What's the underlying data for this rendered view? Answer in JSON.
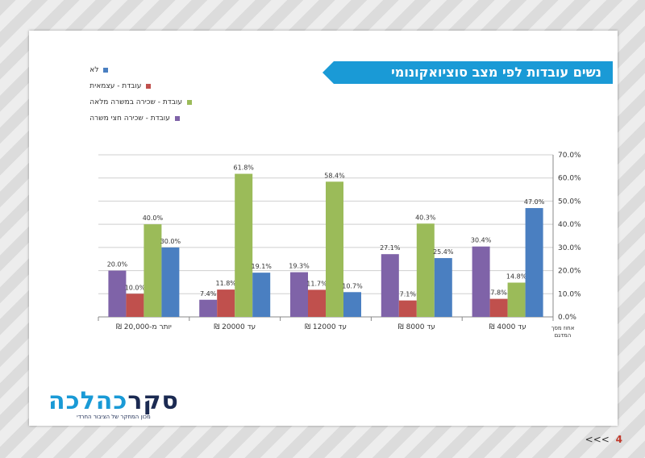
{
  "banner_title": "נשים עובדות לפי מצב סוציואקונומי",
  "legend": [
    {
      "label": "לא",
      "color": "#4a7fc1"
    },
    {
      "label": "עובדת - עצמאית",
      "color": "#c0504d"
    },
    {
      "label": "עובדת - שכירה במשרה מלאה",
      "color": "#9bbb59"
    },
    {
      "label": "עובדת - שכירה חצי משרה",
      "color": "#7f63a8"
    }
  ],
  "chart_data": {
    "type": "bar",
    "axis_title": "אחוז מסך המדגם",
    "ylim": [
      0,
      70
    ],
    "yticks": [
      "0.0%",
      "10.0%",
      "20.0%",
      "30.0%",
      "40.0%",
      "50.0%",
      "60.0%",
      "70.0%"
    ],
    "categories": [
      "יותר  מ-20,000 ₪",
      "עד 20000 ₪",
      "עד 12000 ₪",
      "עד 8000 ₪",
      "עד 4000 ₪"
    ],
    "series": [
      {
        "name": "עובדת - שכירה חצי משרה",
        "color": "#7f63a8",
        "values": [
          20.0,
          7.4,
          19.3,
          27.1,
          30.4
        ],
        "labels": [
          "20.0%",
          "7.4%",
          "19.3%",
          "27.1%",
          "30.4%"
        ]
      },
      {
        "name": "עובדת - עצמאית",
        "color": "#c0504d",
        "values": [
          10.0,
          11.8,
          11.7,
          7.1,
          7.8
        ],
        "labels": [
          "10.0%",
          "11.8%",
          "11.7%",
          "7.1%",
          "7.8%"
        ]
      },
      {
        "name": "עובדת - שכירה במשרה מלאה",
        "color": "#9bbb59",
        "values": [
          40.0,
          61.8,
          58.4,
          40.3,
          14.8
        ],
        "labels": [
          "40.0%",
          "61.8%",
          "58.4%",
          "40.3%",
          "14.8%"
        ]
      },
      {
        "name": "לא",
        "color": "#4a7fc1",
        "values": [
          30.0,
          19.1,
          10.7,
          25.4,
          47.0
        ],
        "labels": [
          "30.0%",
          "19.1%",
          "10.7%",
          "25.4%",
          "47.0%"
        ]
      }
    ]
  },
  "logo": {
    "dark_part": "סקר",
    "light_part": "כהלכה",
    "tagline": "מכון המחקר של הציבור החרדי"
  },
  "pager": {
    "page": "4",
    "arrows": "<<<"
  }
}
